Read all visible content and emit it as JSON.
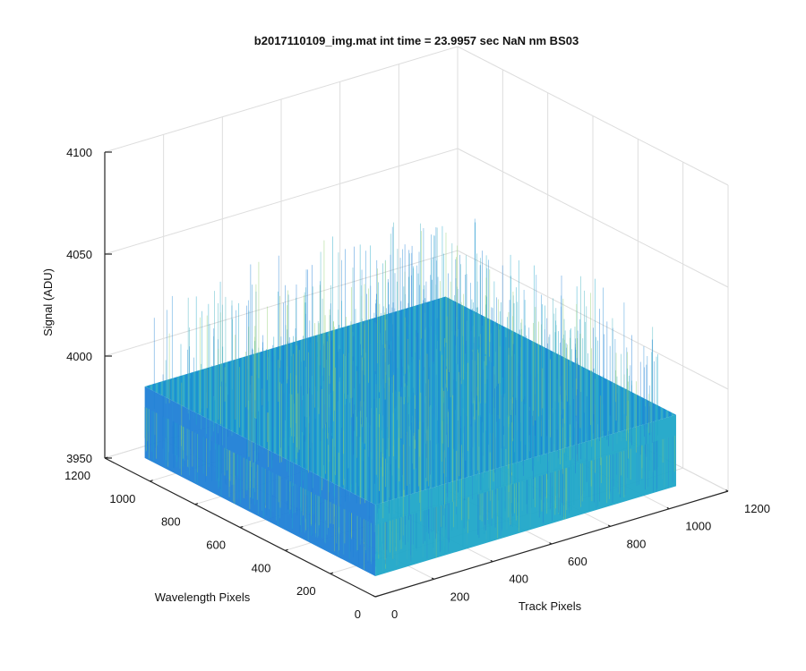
{
  "chart_data": {
    "type": "surface",
    "title": "b2017110109_img.mat int time = 23.9957 sec  NaN nm BS03",
    "xlabel": "Track Pixels",
    "ylabel": "Wavelength Pixels",
    "zlabel": "Signal (ADU)",
    "xlim": [
      0,
      1200
    ],
    "ylim": [
      0,
      1200
    ],
    "zlim": [
      3950,
      4100
    ],
    "x_ticks": [
      "0",
      "200",
      "400",
      "600",
      "800",
      "1000",
      "1200"
    ],
    "y_ticks": [
      "0",
      "200",
      "400",
      "600",
      "800",
      "1000",
      "1200"
    ],
    "z_ticks": [
      "3950",
      "4000",
      "4050",
      "4100"
    ],
    "data_extent": {
      "x": [
        1,
        1024
      ],
      "y": [
        1,
        1024
      ]
    },
    "mean_signal": 3985,
    "noise_range": [
      3960,
      4045
    ],
    "grid": true,
    "colormap": "parula",
    "colors": {
      "low": "#1f7fd6",
      "mid": "#1fa6c8",
      "high": "#8fcf6f",
      "grid": "#dddddd",
      "axis": "#262626"
    }
  }
}
